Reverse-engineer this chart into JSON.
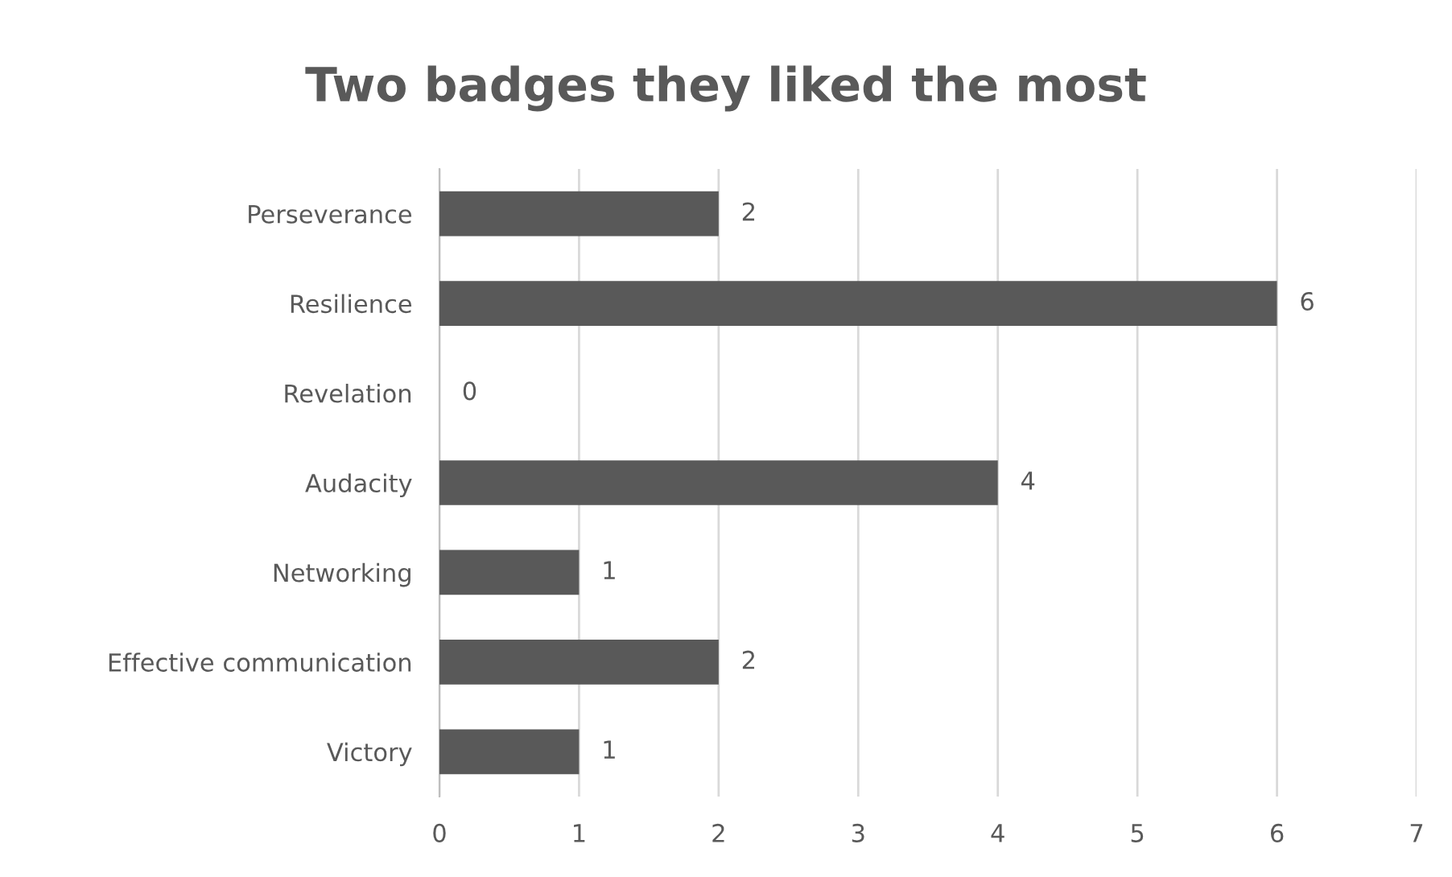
{
  "chart_data": {
    "type": "bar",
    "orientation": "horizontal",
    "title": "Two badges they liked the most",
    "categories": [
      "Perseverance",
      "Resilience",
      "Revelation",
      "Audacity",
      "Networking",
      "Effective communication",
      "Victory"
    ],
    "values": [
      2,
      6,
      0,
      4,
      1,
      2,
      1
    ],
    "color": "#595959",
    "xlim": [
      0,
      7
    ],
    "xticks": [
      0,
      1,
      2,
      3,
      4,
      5,
      6,
      7
    ],
    "grid": "x",
    "data_labels": true
  }
}
